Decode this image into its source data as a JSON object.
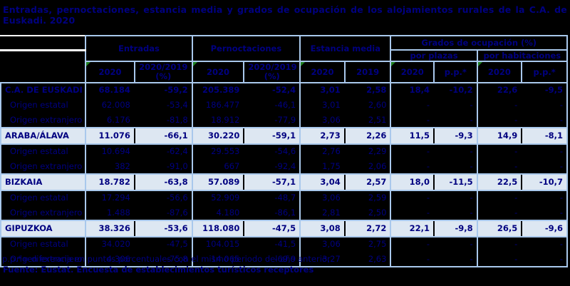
{
  "title": {
    "line1": "Entradas, pernoctaciones, estancia media y grados de ocupación de los alojamientos rurales de la C.A. de",
    "line2": "Euskadi. 2020"
  },
  "header": {
    "groups": {
      "entradas": "Entradas",
      "pernoctaciones": "Pernoctaciones",
      "estancia": "Estancia media",
      "grados": "Grados de ocupación (%)",
      "plazas": "por plazas",
      "habitaciones": "por habitaciones"
    },
    "sub": {
      "ent_2020": "2020",
      "ent_var": "2020/2019 (%)",
      "per_2020": "2020",
      "per_var": "2020/2019 (%)",
      "est_2020": "2020",
      "est_2019": "2019",
      "pla_2020": "2020",
      "pla_pp": "p.p.*",
      "hab_2020": "2020",
      "hab_pp": "p.p.*"
    }
  },
  "rows": [
    {
      "label": "C.A. DE EUSKADI",
      "ent": "68.184",
      "ent_var": "-59,2",
      "per": "205.389",
      "per_var": "-52,4",
      "est20": "3,01",
      "est19": "2,58",
      "pla": "18,4",
      "pla_pp": "-10,2",
      "hab": "22,6",
      "hab_pp": "-9,5"
    },
    {
      "label": "Origen estatal",
      "ent": "62.008",
      "ent_var": "-53,4",
      "per": "186.477",
      "per_var": "-46,1",
      "est20": "3,01",
      "est19": "2,60",
      "pla": "-",
      "pla_pp": "-",
      "hab": "-",
      "hab_pp": "-"
    },
    {
      "label": "Origen extranjero",
      "ent": "6.176",
      "ent_var": "-81,8",
      "per": "18.912",
      "per_var": "-77,9",
      "est20": "3,06",
      "est19": "2,51",
      "pla": "-",
      "pla_pp": "-",
      "hab": "-",
      "hab_pp": "-"
    },
    {
      "label": "ARABA/ÁLAVA",
      "ent": "11.076",
      "ent_var": "-66,1",
      "per": "30.220",
      "per_var": "-59,1",
      "est20": "2,73",
      "est19": "2,26",
      "pla": "11,5",
      "pla_pp": "-9,3",
      "hab": "14,9",
      "hab_pp": "-8,1"
    },
    {
      "label": "Origen estatal",
      "ent": "10.694",
      "ent_var": "-62,4",
      "per": "29.553",
      "per_var": "-54,6",
      "est20": "2,76",
      "est19": "2,29",
      "pla": "-",
      "pla_pp": "-",
      "hab": "-",
      "hab_pp": "-"
    },
    {
      "label": "Origen extranjero",
      "ent": "382",
      "ent_var": "-91,0",
      "per": "667",
      "per_var": "-92,4",
      "est20": "1,75",
      "est19": "2,06",
      "pla": "-",
      "pla_pp": "-",
      "hab": "-",
      "hab_pp": "-"
    },
    {
      "label": "BIZKAIA",
      "ent": "18.782",
      "ent_var": "-63,8",
      "per": "57.089",
      "per_var": "-57,1",
      "est20": "3,04",
      "est19": "2,57",
      "pla": "18,0",
      "pla_pp": "-11,5",
      "hab": "22,5",
      "hab_pp": "-10,7"
    },
    {
      "label": "Origen estatal",
      "ent": "17.294",
      "ent_var": "-56,6",
      "per": "52.909",
      "per_var": "-48,7",
      "est20": "3,06",
      "est19": "2,59",
      "pla": "-",
      "pla_pp": "-",
      "hab": "-",
      "hab_pp": "-"
    },
    {
      "label": "Origen extranjero",
      "ent": "1.488",
      "ent_var": "-87,6",
      "per": "4.180",
      "per_var": "-86,1",
      "est20": "2,81",
      "est19": "2,50",
      "pla": "-",
      "pla_pp": "-",
      "hab": "-",
      "hab_pp": "-"
    },
    {
      "label": "GIPUZKOA",
      "ent": "38.326",
      "ent_var": "-53,6",
      "per": "118.080",
      "per_var": "-47,5",
      "est20": "3,08",
      "est19": "2,72",
      "pla": "22,1",
      "pla_pp": "-9,8",
      "hab": "26,5",
      "hab_pp": "-9,6"
    },
    {
      "label": "Origen estatal",
      "ent": "34.020",
      "ent_var": "-47,5",
      "per": "104.015",
      "per_var": "-41,5",
      "est20": "3,06",
      "est19": "2,75",
      "pla": "-",
      "pla_pp": "-",
      "hab": "-",
      "hab_pp": "-"
    },
    {
      "label": "Origen extranjero",
      "ent": "4.306",
      "ent_var": "-75,8",
      "per": "14.065",
      "per_var": "-69,9",
      "est20": "3,27",
      "est19": "2,63",
      "pla": "-",
      "pla_pp": "-",
      "hab": "-",
      "hab_pp": "-"
    }
  ],
  "footnote": "p.p.*= diferencia en puntos porcentuales con el mismo periodo del año anterior",
  "source": "Fuente: Eustat. Encuesta de establecimientos turísticos receptores",
  "colors": {
    "text": "#000080",
    "border": "#a9c8ec",
    "region_row_bg": "#dde7f2",
    "background": "#000000",
    "flag": "#208020"
  }
}
